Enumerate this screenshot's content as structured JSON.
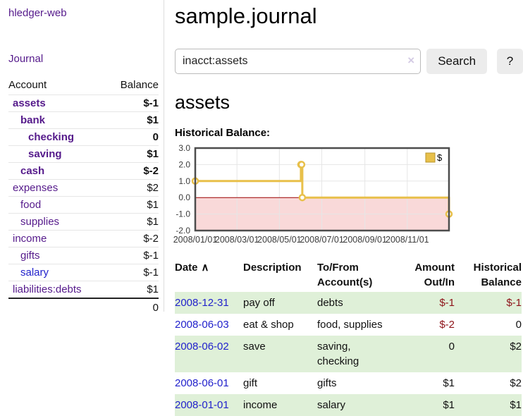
{
  "sidebar": {
    "app_title": "hledger-web",
    "journal_link": "Journal",
    "accounts": {
      "header_account": "Account",
      "header_balance": "Balance",
      "rows": [
        {
          "name": "assets",
          "balance": "$-1",
          "indent": 1,
          "bold": true,
          "value_tone": "neg-strong",
          "link_tone": ""
        },
        {
          "name": "bank",
          "balance": "$1",
          "indent": 2,
          "bold": true,
          "value_tone": "",
          "link_tone": ""
        },
        {
          "name": "checking",
          "balance": "0",
          "indent": 3,
          "bold": true,
          "value_tone": "",
          "link_tone": ""
        },
        {
          "name": "saving",
          "balance": "$1",
          "indent": 3,
          "bold": true,
          "value_tone": "",
          "link_tone": ""
        },
        {
          "name": "cash",
          "balance": "$-2",
          "indent": 2,
          "bold": true,
          "value_tone": "neg-strong",
          "link_tone": ""
        },
        {
          "name": "expenses",
          "balance": "$2",
          "indent": 1,
          "bold": false,
          "value_tone": "",
          "link_tone": ""
        },
        {
          "name": "food",
          "balance": "$1",
          "indent": 2,
          "bold": false,
          "value_tone": "",
          "link_tone": ""
        },
        {
          "name": "supplies",
          "balance": "$1",
          "indent": 2,
          "bold": false,
          "value_tone": "",
          "link_tone": ""
        },
        {
          "name": "income",
          "balance": "$-2",
          "indent": 1,
          "bold": false,
          "value_tone": "neg-soft",
          "link_tone": ""
        },
        {
          "name": "gifts",
          "balance": "$-1",
          "indent": 2,
          "bold": false,
          "value_tone": "neg-soft",
          "link_tone": ""
        },
        {
          "name": "salary",
          "balance": "$-1",
          "indent": 2,
          "bold": false,
          "value_tone": "neg-soft",
          "link_tone": "blue-link"
        },
        {
          "name": "liabilities:debts",
          "balance": "$1",
          "indent": 1,
          "bold": false,
          "value_tone": "",
          "link_tone": ""
        }
      ],
      "total": "0"
    }
  },
  "header": {
    "title": "sample.journal",
    "search": {
      "value": "inacct:assets",
      "clear_icon": "×",
      "search_button": "Search",
      "help_button": "?"
    }
  },
  "report": {
    "heading": "assets",
    "chart_title": "Historical Balance:"
  },
  "chart_data": {
    "type": "line",
    "title": "Historical Balance",
    "series": [
      {
        "name": "$",
        "color": "#e8c04a",
        "step": true,
        "marker": "circle",
        "points": [
          {
            "date": "2008-01-01",
            "value": 1
          },
          {
            "date": "2008-06-01",
            "value": 2
          },
          {
            "date": "2008-06-02",
            "value": 2
          },
          {
            "date": "2008-06-03",
            "value": 0
          },
          {
            "date": "2008-12-31",
            "value": -1
          }
        ]
      }
    ],
    "x_range": [
      "2008-01-01",
      "2008-12-31"
    ],
    "x_ticks": [
      {
        "date": "2008-01-01",
        "label": "2008/01/01"
      },
      {
        "date": "2008-03-01",
        "label": "2008/03/01"
      },
      {
        "date": "2008-05-01",
        "label": "2008/05/01"
      },
      {
        "date": "2008-07-01",
        "label": "2008/07/01"
      },
      {
        "date": "2008-09-01",
        "label": "2008/09/01"
      },
      {
        "date": "2008-11-01",
        "label": "2008/11/01"
      }
    ],
    "y_ticks": [
      {
        "value": 3,
        "label": "3.0"
      },
      {
        "value": 2,
        "label": "2.0"
      },
      {
        "value": 1,
        "label": "1.0"
      },
      {
        "value": 0,
        "label": "0.0"
      },
      {
        "value": -1,
        "label": "-1.0"
      },
      {
        "value": -2,
        "label": "-2.0"
      }
    ],
    "ylim": [
      -2,
      3
    ],
    "grid": true,
    "legend": {
      "label": "$",
      "position": "top-right",
      "swatch_color": "#e8c04a",
      "swatch_border": "#b8962e"
    },
    "colors": {
      "negative_region": "#f9d9d9",
      "zero_line": "#990000",
      "grid_line": "#e6e6e6",
      "border": "#4d4d4d",
      "tick_text": "#3c3c3c"
    }
  },
  "transactions": {
    "headers": {
      "date": "Date",
      "sort_indicator": "∧",
      "description": "Description",
      "tofrom_line1": "To/From",
      "tofrom_line2": "Account(s)",
      "amount_line1": "Amount",
      "amount_line2": "Out/In",
      "balance_line1": "Historical",
      "balance_line2": "Balance"
    },
    "rows": [
      {
        "date": "2008-12-31",
        "description": "pay off",
        "accounts": "debts",
        "amount": "$-1",
        "amount_tone": "neg",
        "balance": "$-1",
        "balance_tone": "neg"
      },
      {
        "date": "2008-06-03",
        "description": "eat & shop",
        "accounts": "food, supplies",
        "amount": "$-2",
        "amount_tone": "neg",
        "balance": "0",
        "balance_tone": ""
      },
      {
        "date": "2008-06-02",
        "description": "save",
        "accounts": "saving, checking",
        "amount": "0",
        "amount_tone": "",
        "balance": "$2",
        "balance_tone": ""
      },
      {
        "date": "2008-06-01",
        "description": "gift",
        "accounts": "gifts",
        "amount": "$1",
        "amount_tone": "",
        "balance": "$2",
        "balance_tone": ""
      },
      {
        "date": "2008-01-01",
        "description": "income",
        "accounts": "salary",
        "amount": "$1",
        "amount_tone": "",
        "balance": "$1",
        "balance_tone": ""
      }
    ]
  }
}
